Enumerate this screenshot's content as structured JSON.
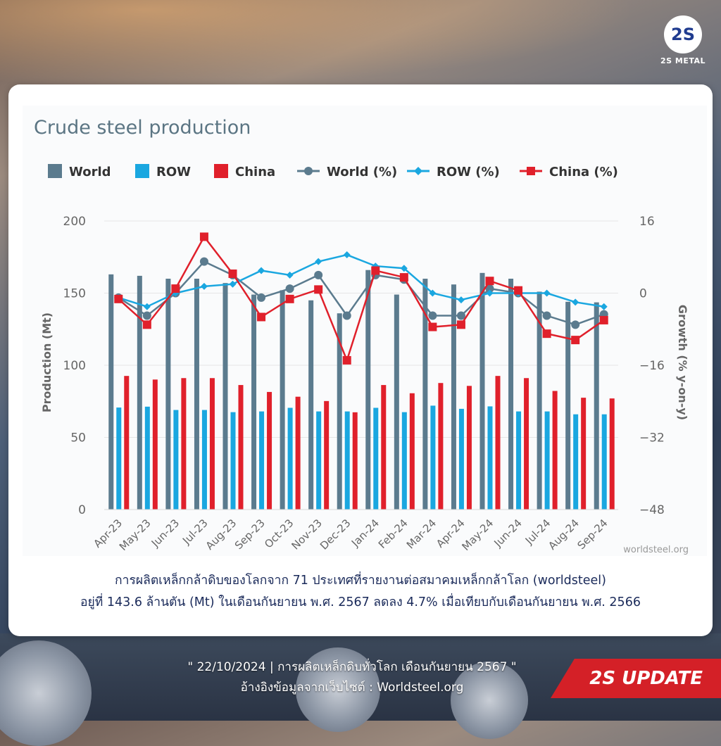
{
  "brand": {
    "logo_text": "2S",
    "name": "2S METAL"
  },
  "chart_data": {
    "type": "bar",
    "title": "Crude steel production",
    "ylabel": "Production (Mt)",
    "y2label": "Growth (% y-on-y)",
    "ylim": [
      0,
      200
    ],
    "y2lim": [
      -48,
      16
    ],
    "yticks": [
      "0",
      "50",
      "100",
      "150",
      "200"
    ],
    "y2ticks": [
      "−48",
      "−32",
      "−16",
      "0",
      "16"
    ],
    "source": "worldsteel.org",
    "categories": [
      "Apr-23",
      "May-23",
      "Jun-23",
      "Jul-23",
      "Aug-23",
      "Sep-23",
      "Oct-23",
      "Nov-23",
      "Dec-23",
      "Jan-24",
      "Feb-24",
      "Mar-24",
      "Apr-24",
      "May-24",
      "Jun-24",
      "Jul-24",
      "Aug-24",
      "Sep-24"
    ],
    "legend_position": "top",
    "bar_series": [
      {
        "name": "World",
        "color": "#5b7b8e",
        "values": [
          163,
          162,
          160,
          160,
          157,
          149,
          152,
          145,
          136,
          166,
          149,
          160,
          156,
          164,
          160,
          151,
          144,
          143.6
        ]
      },
      {
        "name": "ROW",
        "color": "#1aa7e0",
        "values": [
          70.7,
          71.3,
          69,
          69,
          67.5,
          68,
          70.5,
          68,
          68,
          70.5,
          67.5,
          72,
          69.8,
          71.5,
          68,
          68,
          66,
          66
        ]
      },
      {
        "name": "China",
        "color": "#e0202b",
        "values": [
          92.6,
          90.1,
          91.1,
          91.1,
          86.3,
          81.5,
          78.2,
          75.2,
          67.4,
          86.3,
          80.6,
          87.7,
          85.7,
          92.6,
          91.1,
          82.2,
          77.5,
          77
        ]
      }
    ],
    "line_series": [
      {
        "name": "World (%)",
        "color": "#5b7b8e",
        "marker": "circle",
        "values": [
          -1,
          -5,
          0,
          7,
          4,
          -1,
          1,
          4,
          -5,
          4,
          3,
          -5,
          -5,
          1,
          0,
          -5,
          -7,
          -4.7
        ]
      },
      {
        "name": "ROW (%)",
        "color": "#1aa7e0",
        "marker": "diamond",
        "values": [
          -1,
          -3,
          0,
          1.5,
          2,
          5,
          4,
          7,
          8.5,
          6,
          5.5,
          0,
          -1.5,
          0,
          0,
          0,
          -2,
          -3
        ]
      },
      {
        "name": "China (%)",
        "color": "#e0202b",
        "marker": "square",
        "values": [
          -1.3,
          -7,
          1,
          12.5,
          4.3,
          -5.3,
          -1.3,
          0.8,
          -14.9,
          5,
          3.5,
          -7.5,
          -7,
          2.7,
          0.6,
          -9,
          -10.4,
          -6
        ]
      }
    ]
  },
  "caption": {
    "line1": "การผลิตเหล็กกล้าดิบของโลกจาก 71 ประเทศที่รายงานต่อสมาคมเหล็กกล้าโลก (worldsteel)",
    "line2": "อยู่ที่ 143.6 ล้านตัน (Mt) ในเดือนกันยายน พ.ศ. 2567 ลดลง 4.7% เมื่อเทียบกับเดือนกันยายน พ.ศ. 2566"
  },
  "footer": {
    "line1": "\" 22/10/2024 | การผลิตเหล็กดิบทั่วโลก เดือนกันยายน 2567 \"",
    "line2": "อ้างอิงข้อมูลจากเว็บไซต์ : Worldsteel.org",
    "badge": "2S UPDATE"
  }
}
